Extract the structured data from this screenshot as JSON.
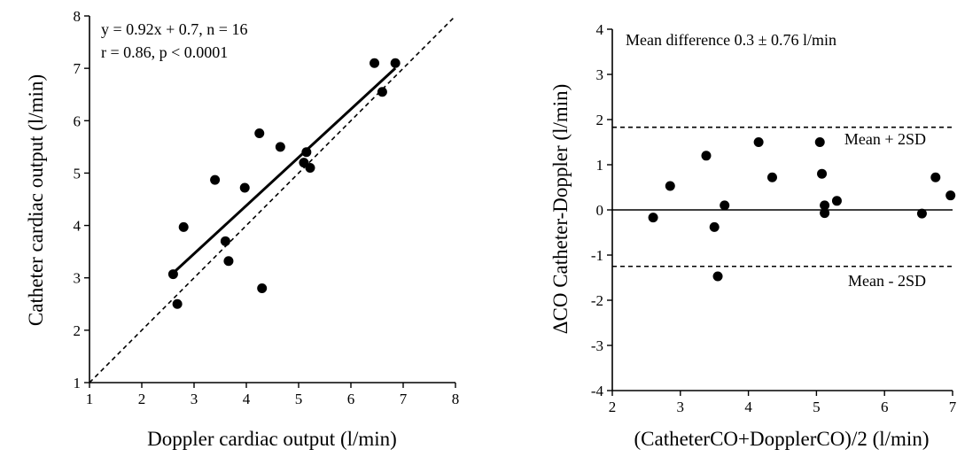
{
  "chart_data": [
    {
      "type": "scatter",
      "xlabel": "Doppler cardiac output (l/min)",
      "ylabel": "Catheter cardiac output (l/min)",
      "xlim": [
        1,
        8
      ],
      "ylim": [
        1,
        8
      ],
      "x_ticks": [
        1,
        2,
        3,
        4,
        5,
        6,
        7,
        8
      ],
      "y_ticks": [
        1,
        2,
        3,
        4,
        5,
        6,
        7,
        8
      ],
      "annotations": [
        "y = 0.92x + 0.7, n = 16",
        "r = 0.86, p < 0.0001"
      ],
      "points": [
        {
          "x": 2.6,
          "y": 3.07
        },
        {
          "x": 2.68,
          "y": 2.5
        },
        {
          "x": 2.8,
          "y": 3.97
        },
        {
          "x": 3.4,
          "y": 4.87
        },
        {
          "x": 3.6,
          "y": 3.7
        },
        {
          "x": 3.66,
          "y": 3.32
        },
        {
          "x": 3.97,
          "y": 4.72
        },
        {
          "x": 4.25,
          "y": 5.76
        },
        {
          "x": 4.3,
          "y": 2.8
        },
        {
          "x": 4.65,
          "y": 5.5
        },
        {
          "x": 5.1,
          "y": 5.2
        },
        {
          "x": 5.15,
          "y": 5.4
        },
        {
          "x": 5.22,
          "y": 5.1
        },
        {
          "x": 6.45,
          "y": 7.1
        },
        {
          "x": 6.6,
          "y": 6.55
        },
        {
          "x": 6.85,
          "y": 7.1
        }
      ],
      "regression_line": {
        "slope": 0.92,
        "intercept": 0.7,
        "x_range": [
          2.6,
          6.85
        ]
      },
      "identity_line": {
        "x_range": [
          1,
          8
        ]
      }
    },
    {
      "type": "scatter",
      "xlabel": "(CatheterCO+DopplerCO)/2 (l/min)",
      "ylabel": "ΔCO Catheter-Doppler (l/min)",
      "xlim": [
        2,
        7
      ],
      "ylim": [
        -4,
        4
      ],
      "x_ticks": [
        2,
        3,
        4,
        5,
        6,
        7
      ],
      "y_ticks": [
        -4,
        -3,
        -2,
        -1,
        0,
        1,
        2,
        3,
        4
      ],
      "annotations": [
        "Mean difference 0.3 ± 0.76 l/min"
      ],
      "reference_lines": [
        {
          "label": "Mean + 2SD",
          "y": 1.83
        },
        {
          "label": "Mean - 2SD",
          "y": -1.25
        }
      ],
      "zero_line": 0,
      "points": [
        {
          "x": 2.6,
          "y": -0.17
        },
        {
          "x": 2.85,
          "y": 0.53
        },
        {
          "x": 3.38,
          "y": 1.2
        },
        {
          "x": 3.5,
          "y": -0.38
        },
        {
          "x": 3.55,
          "y": -1.47
        },
        {
          "x": 3.65,
          "y": 0.1
        },
        {
          "x": 4.15,
          "y": 1.5
        },
        {
          "x": 4.35,
          "y": 0.72
        },
        {
          "x": 5.05,
          "y": 1.5
        },
        {
          "x": 5.08,
          "y": 0.8
        },
        {
          "x": 5.12,
          "y": 0.1
        },
        {
          "x": 5.12,
          "y": -0.07
        },
        {
          "x": 5.3,
          "y": 0.2
        },
        {
          "x": 6.55,
          "y": -0.08
        },
        {
          "x": 6.75,
          "y": 0.72
        },
        {
          "x": 6.97,
          "y": 0.32
        }
      ]
    }
  ]
}
